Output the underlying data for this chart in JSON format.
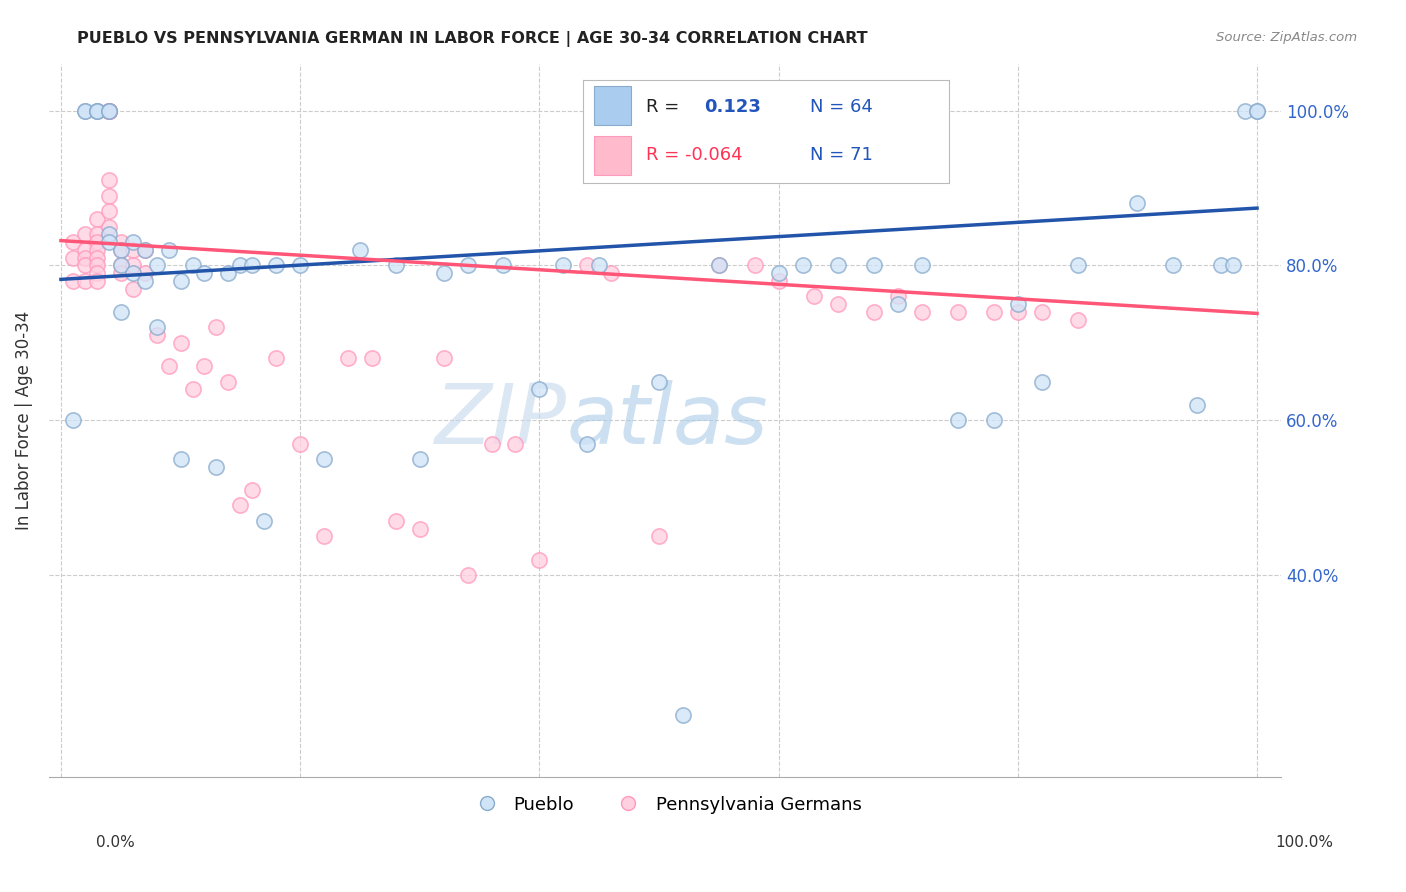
{
  "title": "PUEBLO VS PENNSYLVANIA GERMAN IN LABOR FORCE | AGE 30-34 CORRELATION CHART",
  "source": "Source: ZipAtlas.com",
  "ylabel": "In Labor Force | Age 30-34",
  "blue_color": "#99BBDD",
  "pink_color": "#FFAACC",
  "blue_edge": "#88AACC",
  "pink_edge": "#FF99BB",
  "blue_line_color": "#2255AA",
  "pink_line_color": "#FF5577",
  "watermark_zip": "ZIP",
  "watermark_atlas": "atlas",
  "ytick_labels": [
    "40.0%",
    "60.0%",
    "80.0%",
    "100.0%"
  ],
  "ytick_values": [
    0.4,
    0.6,
    0.8,
    1.0
  ],
  "xtick_values": [
    0.0,
    0.2,
    0.4,
    0.6,
    0.8,
    1.0
  ],
  "xlim": [
    -0.01,
    1.02
  ],
  "ylim": [
    0.14,
    1.06
  ],
  "blue_scatter_x": [
    0.01,
    0.02,
    0.02,
    0.03,
    0.03,
    0.03,
    0.04,
    0.04,
    0.04,
    0.04,
    0.05,
    0.05,
    0.05,
    0.06,
    0.06,
    0.07,
    0.07,
    0.08,
    0.08,
    0.09,
    0.1,
    0.1,
    0.11,
    0.12,
    0.13,
    0.14,
    0.15,
    0.16,
    0.17,
    0.18,
    0.2,
    0.22,
    0.25,
    0.28,
    0.3,
    0.32,
    0.34,
    0.37,
    0.4,
    0.42,
    0.44,
    0.45,
    0.5,
    0.52,
    0.55,
    0.6,
    0.62,
    0.65,
    0.68,
    0.7,
    0.72,
    0.75,
    0.78,
    0.8,
    0.82,
    0.85,
    0.9,
    0.93,
    0.95,
    0.97,
    0.98,
    0.99,
    1.0,
    1.0
  ],
  "blue_scatter_y": [
    0.6,
    1.0,
    1.0,
    1.0,
    1.0,
    1.0,
    1.0,
    1.0,
    0.84,
    0.83,
    0.82,
    0.8,
    0.74,
    0.83,
    0.79,
    0.82,
    0.78,
    0.72,
    0.8,
    0.82,
    0.55,
    0.78,
    0.8,
    0.79,
    0.54,
    0.79,
    0.8,
    0.8,
    0.47,
    0.8,
    0.8,
    0.55,
    0.82,
    0.8,
    0.55,
    0.79,
    0.8,
    0.8,
    0.64,
    0.8,
    0.57,
    0.8,
    0.65,
    0.22,
    0.8,
    0.79,
    0.8,
    0.8,
    0.8,
    0.75,
    0.8,
    0.6,
    0.6,
    0.75,
    0.65,
    0.8,
    0.88,
    0.8,
    0.62,
    0.8,
    0.8,
    1.0,
    1.0,
    1.0
  ],
  "pink_scatter_x": [
    0.01,
    0.01,
    0.01,
    0.02,
    0.02,
    0.02,
    0.02,
    0.02,
    0.03,
    0.03,
    0.03,
    0.03,
    0.03,
    0.03,
    0.03,
    0.03,
    0.04,
    0.04,
    0.04,
    0.04,
    0.04,
    0.04,
    0.04,
    0.04,
    0.04,
    0.05,
    0.05,
    0.05,
    0.05,
    0.06,
    0.06,
    0.06,
    0.07,
    0.07,
    0.08,
    0.09,
    0.1,
    0.11,
    0.12,
    0.13,
    0.14,
    0.15,
    0.16,
    0.18,
    0.2,
    0.22,
    0.24,
    0.26,
    0.28,
    0.3,
    0.32,
    0.34,
    0.36,
    0.38,
    0.4,
    0.44,
    0.46,
    0.5,
    0.55,
    0.58,
    0.6,
    0.63,
    0.65,
    0.68,
    0.7,
    0.72,
    0.75,
    0.78,
    0.8,
    0.82,
    0.85
  ],
  "pink_scatter_y": [
    0.83,
    0.81,
    0.78,
    0.84,
    0.82,
    0.81,
    0.8,
    0.78,
    0.86,
    0.84,
    0.83,
    0.82,
    0.81,
    0.8,
    0.79,
    0.78,
    1.0,
    1.0,
    1.0,
    1.0,
    1.0,
    0.91,
    0.89,
    0.87,
    0.85,
    0.83,
    0.82,
    0.8,
    0.79,
    0.82,
    0.8,
    0.77,
    0.82,
    0.79,
    0.71,
    0.67,
    0.7,
    0.64,
    0.67,
    0.72,
    0.65,
    0.49,
    0.51,
    0.68,
    0.57,
    0.45,
    0.68,
    0.68,
    0.47,
    0.46,
    0.68,
    0.4,
    0.57,
    0.57,
    0.42,
    0.8,
    0.79,
    0.45,
    0.8,
    0.8,
    0.78,
    0.76,
    0.75,
    0.74,
    0.76,
    0.74,
    0.74,
    0.74,
    0.74,
    0.74,
    0.73
  ],
  "blue_line": {
    "x0": 0.0,
    "y0": 0.782,
    "x1": 1.0,
    "y1": 0.874
  },
  "pink_line": {
    "x0": 0.0,
    "y0": 0.832,
    "x1": 1.0,
    "y1": 0.738
  },
  "legend_r_blue": "R =",
  "legend_val_blue": "0.123",
  "legend_n_blue": "N = 64",
  "legend_r_pink": "R = -0.064",
  "legend_n_pink": "N = 71"
}
